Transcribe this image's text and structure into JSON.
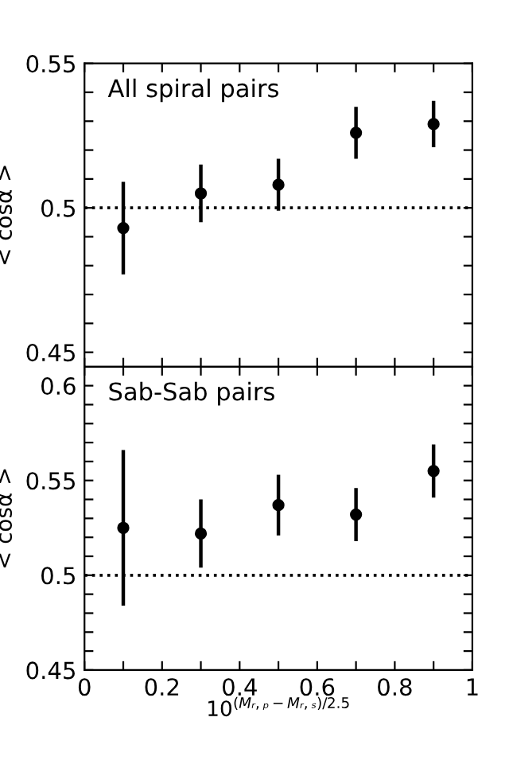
{
  "chart_data": [
    {
      "type": "scatter",
      "title": "All spiral pairs",
      "ylabel": "< cosα >",
      "x": [
        0.1,
        0.3,
        0.5,
        0.7,
        0.9
      ],
      "series": [
        {
          "color": "#000000",
          "values": [
            0.493,
            0.505,
            0.508,
            0.526,
            0.529
          ],
          "errors": [
            0.016,
            0.01,
            0.009,
            0.009,
            0.008
          ]
        }
      ],
      "marker": "circle",
      "xlim": [
        0,
        1
      ],
      "ylim": [
        0.445,
        0.55
      ],
      "xticks": [
        0,
        {
          "value": 0.1,
          "label": null
        },
        0.2,
        {
          "value": 0.3,
          "label": null
        },
        0.4,
        {
          "value": 0.5,
          "label": null
        },
        0.6,
        {
          "value": 0.7,
          "label": null
        },
        0.8,
        {
          "value": 0.9,
          "label": null
        },
        1
      ],
      "yticks": [
        0.45,
        {
          "value": 0.46,
          "label": null
        },
        {
          "value": 0.47,
          "label": null
        },
        {
          "value": 0.48,
          "label": null
        },
        {
          "value": 0.49,
          "label": null
        },
        0.5,
        {
          "value": 0.51,
          "label": null
        },
        {
          "value": 0.52,
          "label": null
        },
        {
          "value": 0.53,
          "label": null
        },
        {
          "value": 0.54,
          "label": null
        },
        0.55
      ],
      "ref_lines": [
        {
          "axis": "y",
          "value": 0.5,
          "line_style": "dotted",
          "color": "#000000"
        }
      ],
      "tick_labels": "y",
      "grid": false,
      "legend": false
    },
    {
      "type": "scatter",
      "title": "Sab-Sab pairs",
      "ylabel": "< cosα >",
      "xlabel": "10$^{(Mᵣ,ₚ−Mᵣ,ₛ)/2.5}$",
      "x": [
        0.1,
        0.3,
        0.5,
        0.7,
        0.9
      ],
      "series": [
        {
          "color": "#000000",
          "values": [
            0.525,
            0.522,
            0.537,
            0.532,
            0.555
          ],
          "errors": [
            0.041,
            0.018,
            0.016,
            0.014,
            0.014
          ]
        }
      ],
      "marker": "circle",
      "xlim": [
        0,
        1
      ],
      "ylim": [
        0.45,
        0.61
      ],
      "xticks": [
        0,
        {
          "value": 0.1,
          "label": null
        },
        0.2,
        {
          "value": 0.3,
          "label": null
        },
        0.4,
        {
          "value": 0.5,
          "label": null
        },
        0.6,
        {
          "value": 0.7,
          "label": null
        },
        0.8,
        {
          "value": 0.9,
          "label": null
        },
        1
      ],
      "yticks": [
        0.45,
        {
          "value": 0.46,
          "label": null
        },
        {
          "value": 0.47,
          "label": null
        },
        {
          "value": 0.48,
          "label": null
        },
        {
          "value": 0.49,
          "label": null
        },
        0.5,
        {
          "value": 0.51,
          "label": null
        },
        {
          "value": 0.52,
          "label": null
        },
        {
          "value": 0.53,
          "label": null
        },
        {
          "value": 0.54,
          "label": null
        },
        0.55,
        {
          "value": 0.56,
          "label": null
        },
        {
          "value": 0.57,
          "label": null
        },
        {
          "value": 0.58,
          "label": null
        },
        {
          "value": 0.59,
          "label": null
        },
        0.6
      ],
      "ref_lines": [
        {
          "axis": "y",
          "value": 0.5,
          "line_style": "dotted",
          "color": "#000000"
        }
      ],
      "grid": false,
      "legend": false
    }
  ]
}
